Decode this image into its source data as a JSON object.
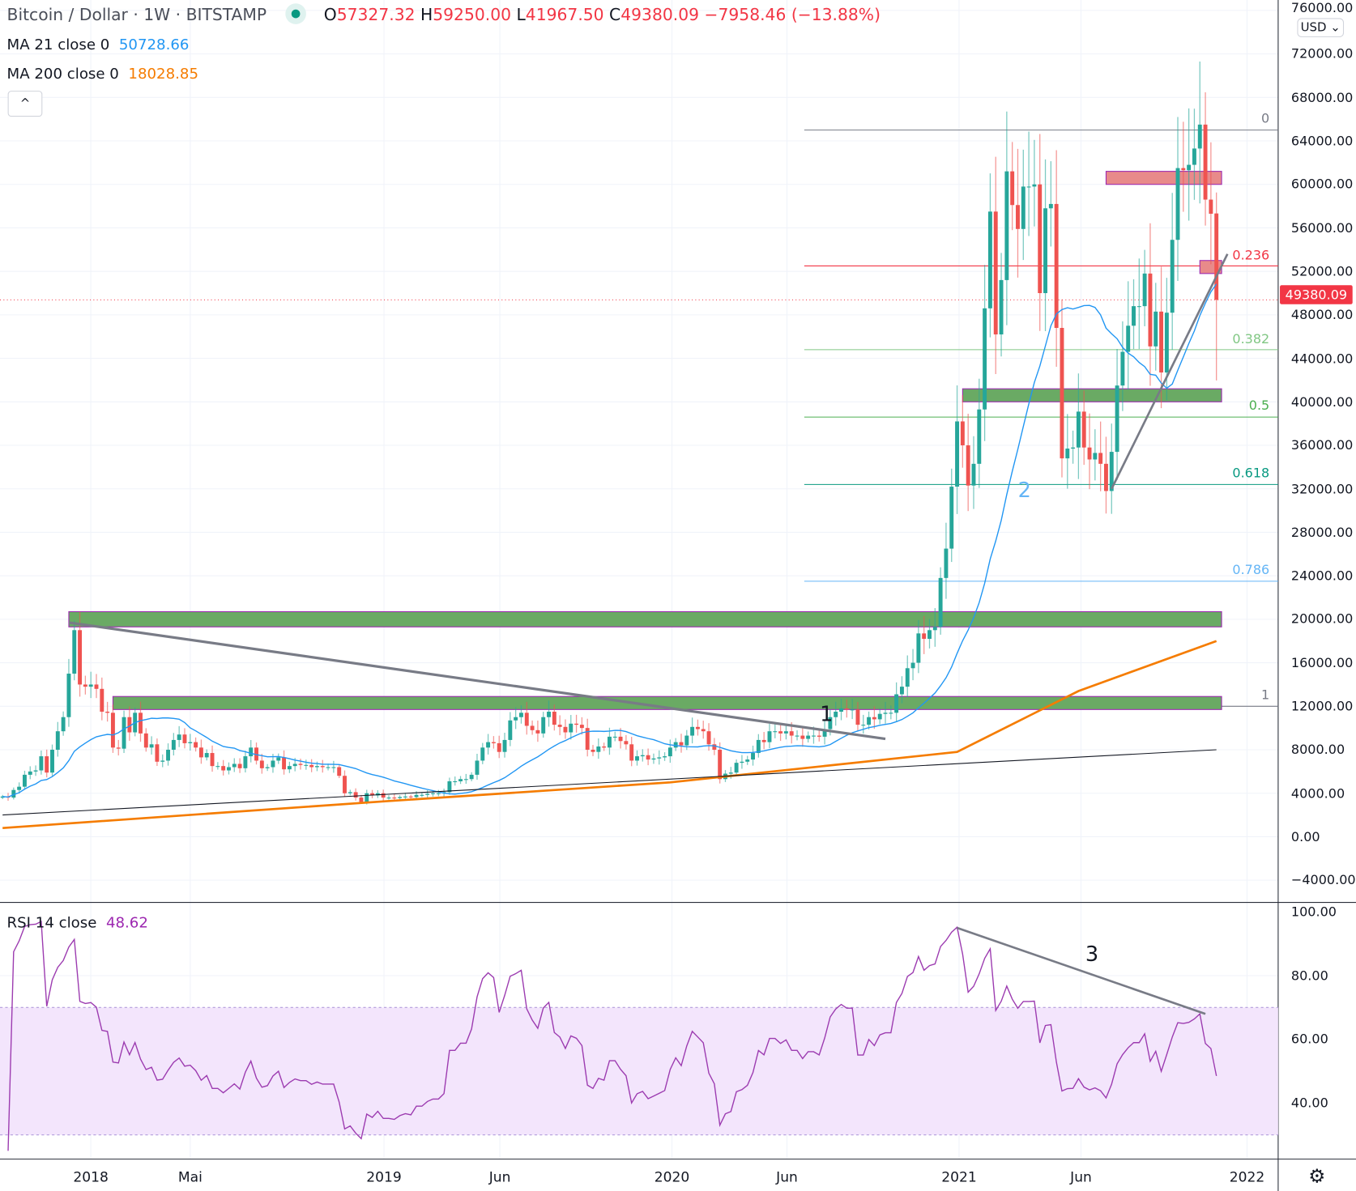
{
  "header": {
    "symbol": "Bitcoin / Dollar",
    "interval": "1W",
    "exchange": "BITSTAMP",
    "o_label": "O",
    "o": "57327.32",
    "h_label": "H",
    "h": "59250.00",
    "l_label": "L",
    "l": "41967.50",
    "c_label": "C",
    "c": "49380.09",
    "change": "−7958.46 (−13.88%)"
  },
  "indicators": {
    "ma21_label": "MA 21 close 0",
    "ma21_value": "50728.66",
    "ma200_label": "MA 200 close 0",
    "ma200_value": "18028.85",
    "rsi_label": "RSI 14 close",
    "rsi_value": "48.62"
  },
  "collapse_icon": "^",
  "currency_button": "USD ⌄",
  "last_price_tag": "49380.09",
  "settings_icon": "⚙",
  "colors": {
    "up": "#26a69a",
    "down": "#ef5350",
    "ma21": "#2196f3",
    "ma200": "#f57c00",
    "rsi": "#9c3bb0",
    "zone_green": "#6aaa64",
    "zone_red": "#e88a8a"
  },
  "price_axis": [
    "76000.00",
    "72000.00",
    "68000.00",
    "64000.00",
    "60000.00",
    "56000.00",
    "52000.00",
    "48000.00",
    "44000.00",
    "40000.00",
    "36000.00",
    "32000.00",
    "28000.00",
    "24000.00",
    "20000.00",
    "16000.00",
    "12000.00",
    "8000.00",
    "4000.00",
    "0.00",
    "−4000.00"
  ],
  "rsi_axis": [
    "100.00",
    "80.00",
    "60.00",
    "40.00"
  ],
  "time_axis": [
    "2018",
    "Mai",
    "2019",
    "Jun",
    "2020",
    "Jun",
    "2021",
    "Jun",
    "2022"
  ],
  "fib_levels": [
    {
      "label": "0",
      "price": 65000,
      "color": "#787b86"
    },
    {
      "label": "0.236",
      "price": 52500,
      "color": "#f23645"
    },
    {
      "label": "0.382",
      "price": 44800,
      "color": "#81c784"
    },
    {
      "label": "0.5",
      "price": 38600,
      "color": "#4caf50"
    },
    {
      "label": "0.618",
      "price": 32400,
      "color": "#089981"
    },
    {
      "label": "0.786",
      "price": 23500,
      "color": "#64b5f6"
    },
    {
      "label": "1",
      "price": 12000,
      "color": "#787b86"
    }
  ],
  "annotations": [
    "1",
    "2",
    "3"
  ],
  "chart_data": {
    "type": "candlestick",
    "interval": "1W",
    "start_week": "2017-09-11",
    "closes": [
      3700,
      3600,
      4300,
      4600,
      5700,
      6000,
      6100,
      7400,
      5900,
      8000,
      9700,
      11000,
      15000,
      19000,
      14000,
      13800,
      14000,
      13600,
      11500,
      11400,
      8200,
      8100,
      11000,
      9600,
      11400,
      9500,
      8200,
      8500,
      6900,
      7000,
      8000,
      8900,
      9400,
      8600,
      8700,
      8200,
      7300,
      7700,
      6500,
      6500,
      6100,
      6400,
      6700,
      6300,
      7400,
      8200,
      7000,
      6300,
      6400,
      7000,
      7300,
      6200,
      6500,
      6700,
      6600,
      6600,
      6400,
      6500,
      6400,
      6400,
      6400,
      5600,
      4000,
      4100,
      3600,
      3200,
      4000,
      3800,
      4000,
      3600,
      3600,
      3550,
      3650,
      3700,
      3650,
      3850,
      3850,
      3950,
      4000,
      4000,
      4100,
      5100,
      5100,
      5300,
      5300,
      5700,
      7000,
      8200,
      8700,
      8600,
      7800,
      8900,
      10700,
      11000,
      11400,
      10200,
      9800,
      9500,
      11000,
      11500,
      10300,
      10100,
      9600,
      10400,
      10300,
      10000,
      8000,
      7800,
      8300,
      8200,
      9200,
      9200,
      8800,
      8500,
      7000,
      7400,
      7500,
      7100,
      7200,
      7300,
      7400,
      8200,
      8700,
      8400,
      9300,
      10100,
      9900,
      9700,
      8500,
      8000,
      5300,
      5800,
      5900,
      6800,
      6900,
      7100,
      7700,
      8900,
      8700,
      9700,
      9700,
      9500,
      9700,
      9300,
      9300,
      9000,
      9300,
      9300,
      9200,
      9900,
      11000,
      11500,
      11800,
      11700,
      11700,
      10300,
      10300,
      11000,
      10800,
      11300,
      11400,
      11400,
      13100,
      13800,
      15500,
      16000,
      18700,
      18200,
      19000,
      19300,
      23800,
      26500,
      32200,
      38200,
      36000,
      32300,
      34300,
      39300,
      48600,
      57500,
      46200,
      51200,
      61200,
      58100,
      55900,
      59800,
      59800,
      60000,
      50000,
      57800,
      58200,
      46800,
      34800,
      35700,
      35800,
      39100,
      35800,
      34700,
      35300,
      34300,
      31800,
      35400,
      41500,
      44600,
      47000,
      48800,
      48800,
      51800,
      45100,
      48300,
      42700,
      48200,
      54900,
      61500,
      61300,
      61800,
      63300,
      65500,
      58600,
      57300,
      49380
    ],
    "last_candle": {
      "open": 57327.32,
      "high": 59250.0,
      "low": 41967.5,
      "close": 49380.09
    },
    "ma200_points": [
      [
        0,
        800
      ],
      [
        69,
        3250
      ],
      [
        121,
        5000
      ],
      [
        173,
        7800
      ],
      [
        195,
        13400
      ],
      [
        220,
        18000
      ]
    ],
    "zones": [
      {
        "from_week": 200,
        "to_week": 220,
        "low": 60000,
        "high": 61200,
        "kind": "red"
      },
      {
        "from_week": 217,
        "to_week": 220,
        "low": 51800,
        "high": 53000,
        "kind": "red"
      },
      {
        "from_week": 174,
        "to_week": 220,
        "low": 40000,
        "high": 41200,
        "kind": "green"
      },
      {
        "from_week": 12,
        "to_week": 220,
        "low": 19300,
        "high": 20700,
        "kind": "green"
      },
      {
        "from_week": 20,
        "to_week": 220,
        "low": 11700,
        "high": 12900,
        "kind": "green"
      }
    ],
    "trendlines": [
      {
        "from": [
          12,
          19700
        ],
        "to": [
          160,
          9000
        ]
      },
      {
        "from": [
          0,
          2000
        ],
        "to": [
          220,
          8000
        ]
      },
      {
        "from": [
          201,
          32000
        ],
        "to": [
          222,
          53600
        ]
      }
    ],
    "rsi_trendline": {
      "from": [
        173,
        95
      ],
      "to": [
        218,
        68
      ]
    },
    "price_range": [
      -5000,
      78000
    ],
    "rsi_range": [
      20,
      100
    ],
    "rsi_band": [
      30,
      70
    ],
    "xlabel": "",
    "ylabel": ""
  }
}
